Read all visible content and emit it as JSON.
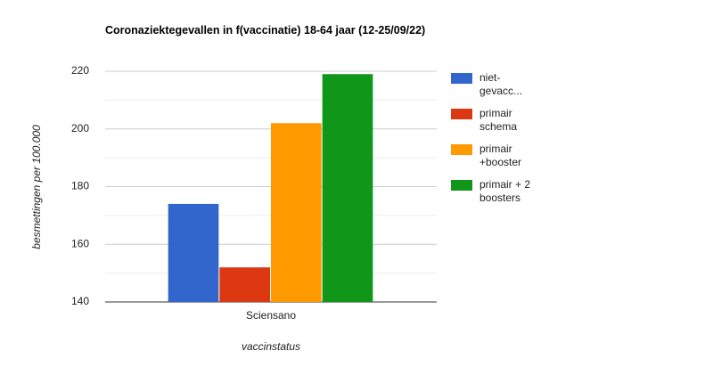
{
  "chart_data": {
    "type": "bar",
    "title": "Coronaziektegevallen in f(vaccinatie) 18-64 jaar (12-25/09/22)",
    "x_label": "vaccinstatus",
    "y_label": "besmettingen per 100.000",
    "categories": [
      "Sciensano"
    ],
    "series": [
      {
        "name": "niet-gevacc...",
        "color": "#3366cc",
        "values": [
          174
        ]
      },
      {
        "name": "primair schema",
        "color": "#dc3912",
        "values": [
          152
        ]
      },
      {
        "name": "primair +booster",
        "color": "#ff9900",
        "values": [
          202
        ]
      },
      {
        "name": "primair + 2 boosters",
        "color": "#109618",
        "values": [
          219
        ]
      }
    ],
    "ylim": [
      140,
      220
    ],
    "yticks": [
      140,
      160,
      180,
      200,
      220
    ],
    "minor_gridlines": [
      150,
      170,
      190,
      210
    ],
    "grid": true,
    "legend": "right"
  }
}
